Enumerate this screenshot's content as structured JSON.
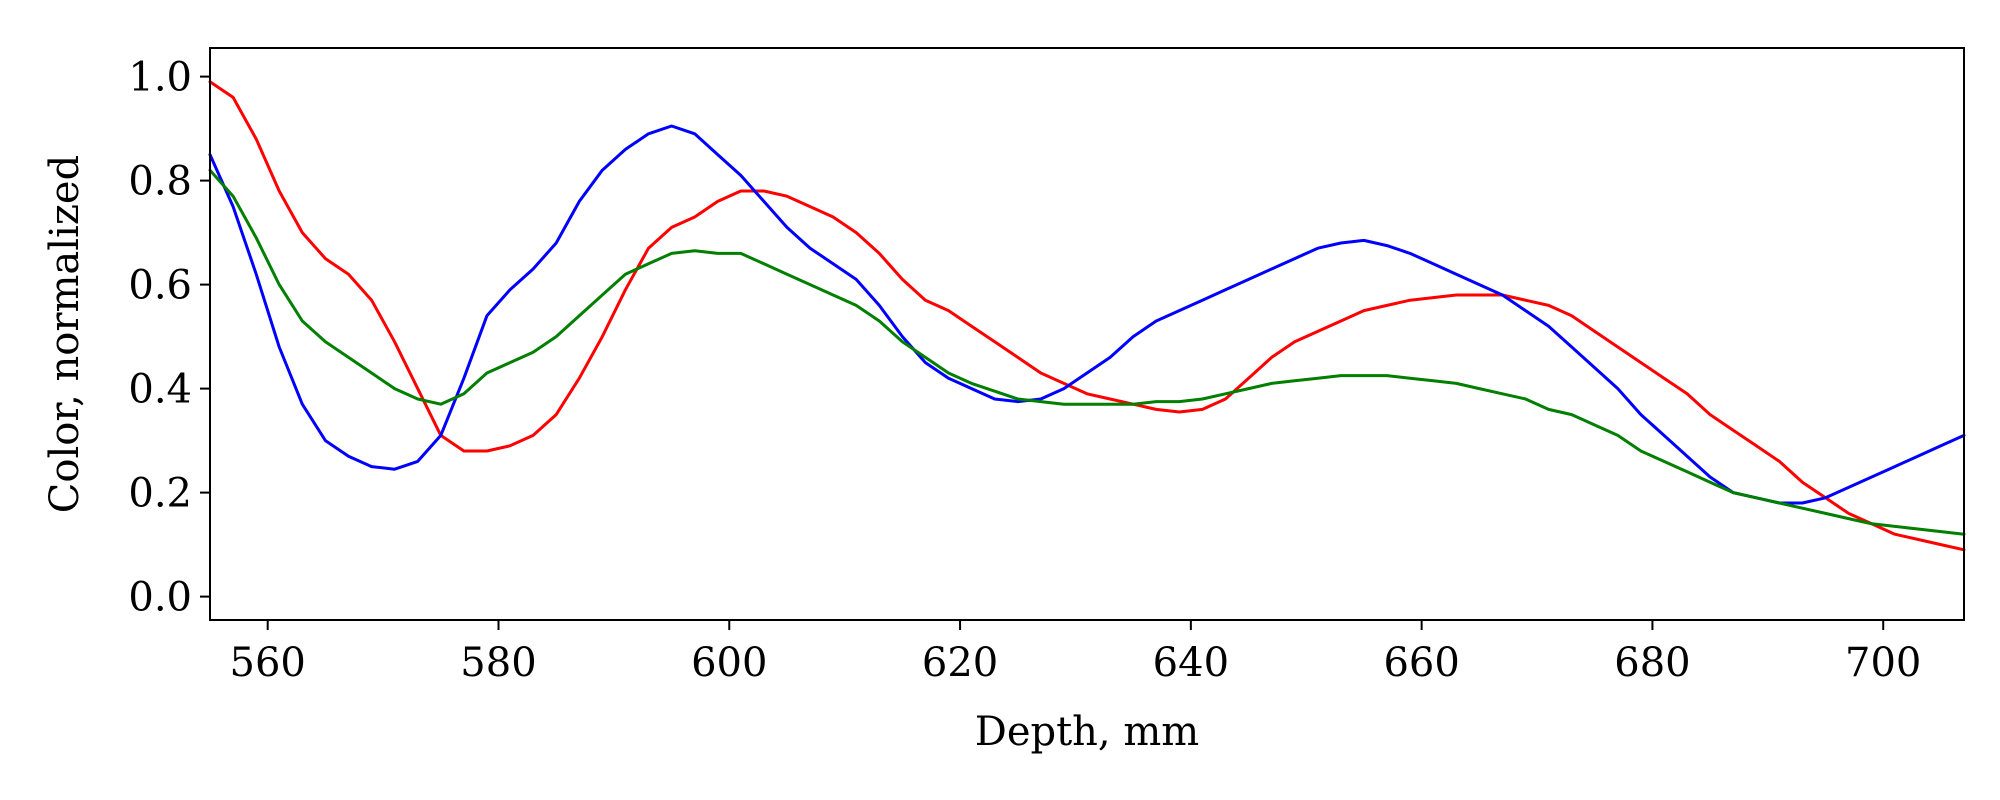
{
  "chart_data": {
    "type": "line",
    "title": "",
    "xlabel": "Depth, mm",
    "ylabel": "Color, normalized",
    "xlim": [
      555,
      707
    ],
    "ylim": [
      -0.045,
      1.055
    ],
    "xticks": [
      560,
      580,
      600,
      620,
      640,
      660,
      680,
      700
    ],
    "yticks": [
      0.0,
      0.2,
      0.4,
      0.6,
      0.8,
      1.0
    ],
    "xtick_labels": [
      "560",
      "580",
      "600",
      "620",
      "640",
      "660",
      "680",
      "700"
    ],
    "ytick_labels": [
      "0.0",
      "0.2",
      "0.4",
      "0.6",
      "0.8",
      "1.0"
    ],
    "grid": false,
    "legend": "none",
    "series": [
      {
        "color": "#ff0000",
        "points": [
          [
            555,
            0.99
          ],
          [
            557,
            0.96
          ],
          [
            559,
            0.88
          ],
          [
            561,
            0.78
          ],
          [
            563,
            0.7
          ],
          [
            565,
            0.65
          ],
          [
            567,
            0.62
          ],
          [
            569,
            0.57
          ],
          [
            571,
            0.49
          ],
          [
            573,
            0.4
          ],
          [
            575,
            0.31
          ],
          [
            577,
            0.28
          ],
          [
            579,
            0.28
          ],
          [
            581,
            0.29
          ],
          [
            583,
            0.31
          ],
          [
            585,
            0.35
          ],
          [
            587,
            0.42
          ],
          [
            589,
            0.5
          ],
          [
            591,
            0.59
          ],
          [
            593,
            0.67
          ],
          [
            595,
            0.71
          ],
          [
            597,
            0.73
          ],
          [
            599,
            0.76
          ],
          [
            601,
            0.78
          ],
          [
            603,
            0.78
          ],
          [
            605,
            0.77
          ],
          [
            607,
            0.75
          ],
          [
            609,
            0.73
          ],
          [
            611,
            0.7
          ],
          [
            613,
            0.66
          ],
          [
            615,
            0.61
          ],
          [
            617,
            0.57
          ],
          [
            619,
            0.55
          ],
          [
            621,
            0.52
          ],
          [
            623,
            0.49
          ],
          [
            625,
            0.46
          ],
          [
            627,
            0.43
          ],
          [
            629,
            0.41
          ],
          [
            631,
            0.39
          ],
          [
            633,
            0.38
          ],
          [
            635,
            0.37
          ],
          [
            637,
            0.36
          ],
          [
            639,
            0.355
          ],
          [
            641,
            0.36
          ],
          [
            643,
            0.38
          ],
          [
            645,
            0.42
          ],
          [
            647,
            0.46
          ],
          [
            649,
            0.49
          ],
          [
            651,
            0.51
          ],
          [
            653,
            0.53
          ],
          [
            655,
            0.55
          ],
          [
            657,
            0.56
          ],
          [
            659,
            0.57
          ],
          [
            661,
            0.575
          ],
          [
            663,
            0.58
          ],
          [
            665,
            0.58
          ],
          [
            667,
            0.58
          ],
          [
            669,
            0.57
          ],
          [
            671,
            0.56
          ],
          [
            673,
            0.54
          ],
          [
            675,
            0.51
          ],
          [
            677,
            0.48
          ],
          [
            679,
            0.45
          ],
          [
            681,
            0.42
          ],
          [
            683,
            0.39
          ],
          [
            685,
            0.35
          ],
          [
            687,
            0.32
          ],
          [
            689,
            0.29
          ],
          [
            691,
            0.26
          ],
          [
            693,
            0.22
          ],
          [
            695,
            0.19
          ],
          [
            697,
            0.16
          ],
          [
            699,
            0.14
          ],
          [
            701,
            0.12
          ],
          [
            703,
            0.11
          ],
          [
            705,
            0.1
          ],
          [
            707,
            0.09
          ]
        ]
      },
      {
        "color": "#0000ff",
        "points": [
          [
            555,
            0.85
          ],
          [
            557,
            0.75
          ],
          [
            559,
            0.62
          ],
          [
            561,
            0.48
          ],
          [
            563,
            0.37
          ],
          [
            565,
            0.3
          ],
          [
            567,
            0.27
          ],
          [
            569,
            0.25
          ],
          [
            571,
            0.245
          ],
          [
            573,
            0.26
          ],
          [
            575,
            0.31
          ],
          [
            577,
            0.42
          ],
          [
            579,
            0.54
          ],
          [
            581,
            0.59
          ],
          [
            583,
            0.63
          ],
          [
            585,
            0.68
          ],
          [
            587,
            0.76
          ],
          [
            589,
            0.82
          ],
          [
            591,
            0.86
          ],
          [
            593,
            0.89
          ],
          [
            595,
            0.905
          ],
          [
            597,
            0.89
          ],
          [
            599,
            0.85
          ],
          [
            601,
            0.81
          ],
          [
            603,
            0.76
          ],
          [
            605,
            0.71
          ],
          [
            607,
            0.67
          ],
          [
            609,
            0.64
          ],
          [
            611,
            0.61
          ],
          [
            613,
            0.56
          ],
          [
            615,
            0.5
          ],
          [
            617,
            0.45
          ],
          [
            619,
            0.42
          ],
          [
            621,
            0.4
          ],
          [
            623,
            0.38
          ],
          [
            625,
            0.375
          ],
          [
            627,
            0.38
          ],
          [
            629,
            0.4
          ],
          [
            631,
            0.43
          ],
          [
            633,
            0.46
          ],
          [
            635,
            0.5
          ],
          [
            637,
            0.53
          ],
          [
            639,
            0.55
          ],
          [
            641,
            0.57
          ],
          [
            643,
            0.59
          ],
          [
            645,
            0.61
          ],
          [
            647,
            0.63
          ],
          [
            649,
            0.65
          ],
          [
            651,
            0.67
          ],
          [
            653,
            0.68
          ],
          [
            655,
            0.685
          ],
          [
            657,
            0.675
          ],
          [
            659,
            0.66
          ],
          [
            661,
            0.64
          ],
          [
            663,
            0.62
          ],
          [
            665,
            0.6
          ],
          [
            667,
            0.58
          ],
          [
            669,
            0.55
          ],
          [
            671,
            0.52
          ],
          [
            673,
            0.48
          ],
          [
            675,
            0.44
          ],
          [
            677,
            0.4
          ],
          [
            679,
            0.35
          ],
          [
            681,
            0.31
          ],
          [
            683,
            0.27
          ],
          [
            685,
            0.23
          ],
          [
            687,
            0.2
          ],
          [
            689,
            0.19
          ],
          [
            691,
            0.18
          ],
          [
            693,
            0.18
          ],
          [
            695,
            0.19
          ],
          [
            697,
            0.21
          ],
          [
            699,
            0.23
          ],
          [
            701,
            0.25
          ],
          [
            703,
            0.27
          ],
          [
            705,
            0.29
          ],
          [
            707,
            0.31
          ]
        ]
      },
      {
        "color": "#007f00",
        "points": [
          [
            555,
            0.82
          ],
          [
            557,
            0.77
          ],
          [
            559,
            0.69
          ],
          [
            561,
            0.6
          ],
          [
            563,
            0.53
          ],
          [
            565,
            0.49
          ],
          [
            567,
            0.46
          ],
          [
            569,
            0.43
          ],
          [
            571,
            0.4
          ],
          [
            573,
            0.38
          ],
          [
            575,
            0.37
          ],
          [
            577,
            0.39
          ],
          [
            579,
            0.43
          ],
          [
            581,
            0.45
          ],
          [
            583,
            0.47
          ],
          [
            585,
            0.5
          ],
          [
            587,
            0.54
          ],
          [
            589,
            0.58
          ],
          [
            591,
            0.62
          ],
          [
            593,
            0.64
          ],
          [
            595,
            0.66
          ],
          [
            597,
            0.665
          ],
          [
            599,
            0.66
          ],
          [
            601,
            0.66
          ],
          [
            603,
            0.64
          ],
          [
            605,
            0.62
          ],
          [
            607,
            0.6
          ],
          [
            609,
            0.58
          ],
          [
            611,
            0.56
          ],
          [
            613,
            0.53
          ],
          [
            615,
            0.49
          ],
          [
            617,
            0.46
          ],
          [
            619,
            0.43
          ],
          [
            621,
            0.41
          ],
          [
            623,
            0.395
          ],
          [
            625,
            0.38
          ],
          [
            627,
            0.375
          ],
          [
            629,
            0.37
          ],
          [
            631,
            0.37
          ],
          [
            633,
            0.37
          ],
          [
            635,
            0.37
          ],
          [
            637,
            0.375
          ],
          [
            639,
            0.375
          ],
          [
            641,
            0.38
          ],
          [
            643,
            0.39
          ],
          [
            645,
            0.4
          ],
          [
            647,
            0.41
          ],
          [
            649,
            0.415
          ],
          [
            651,
            0.42
          ],
          [
            653,
            0.425
          ],
          [
            655,
            0.425
          ],
          [
            657,
            0.425
          ],
          [
            659,
            0.42
          ],
          [
            661,
            0.415
          ],
          [
            663,
            0.41
          ],
          [
            665,
            0.4
          ],
          [
            667,
            0.39
          ],
          [
            669,
            0.38
          ],
          [
            671,
            0.36
          ],
          [
            673,
            0.35
          ],
          [
            675,
            0.33
          ],
          [
            677,
            0.31
          ],
          [
            679,
            0.28
          ],
          [
            681,
            0.26
          ],
          [
            683,
            0.24
          ],
          [
            685,
            0.22
          ],
          [
            687,
            0.2
          ],
          [
            689,
            0.19
          ],
          [
            691,
            0.18
          ],
          [
            693,
            0.17
          ],
          [
            695,
            0.16
          ],
          [
            697,
            0.15
          ],
          [
            699,
            0.14
          ],
          [
            701,
            0.135
          ],
          [
            703,
            0.13
          ],
          [
            705,
            0.125
          ],
          [
            707,
            0.12
          ]
        ]
      }
    ]
  }
}
